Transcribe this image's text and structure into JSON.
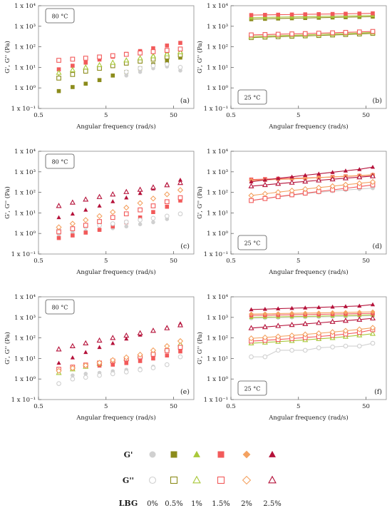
{
  "colors": {
    "lbg_0": "#d0d0d0",
    "lbg_0_5": "#8c8c1c",
    "lbg_1": "#a9c83a",
    "lbg_1_5": "#f25a5a",
    "lbg_2": "#f4a261",
    "lbg_2_5": "#b5123a"
  },
  "axes": {
    "xlabel": "Angular frequency (rad/s)",
    "ylabel": "G', G'' (Pa)",
    "xticks": [
      "0.5",
      "5",
      "50"
    ],
    "yticks": [
      "1 x 10⁻¹",
      "1 x 10⁰",
      "1 x 10¹",
      "1 x 10²",
      "1 x 10³",
      "1 x 10⁴"
    ]
  },
  "legend": {
    "g_prime_label": "G'",
    "g_double_prime_label": "G''",
    "lbg_label": "LBG",
    "concentrations": [
      "0%",
      "0.5%",
      "1%",
      "1.5%",
      "2%",
      "2.5%"
    ]
  },
  "chart_data": [
    {
      "type": "scatter",
      "panel": "(a)",
      "temperature": "80 °C",
      "xlabel": "Angular frequency (rad/s)",
      "ylabel": "G', G'' (Pa)",
      "xscale": "log",
      "yscale": "log",
      "xlim": [
        0.5,
        100
      ],
      "ylim": [
        0.1,
        10000
      ],
      "connected": false,
      "x": [
        1,
        1.6,
        2.5,
        4,
        6.3,
        10,
        16,
        25,
        40,
        63
      ],
      "series": [
        {
          "modulus": "G'",
          "lbg": "0%",
          "values": [
            null,
            null,
            null,
            null,
            null,
            4,
            6,
            9,
            11,
            7
          ]
        },
        {
          "modulus": "G'",
          "lbg": "0.5%",
          "values": [
            0.7,
            1.1,
            1.6,
            2.4,
            4,
            6,
            9,
            14,
            20,
            30
          ]
        },
        {
          "modulus": "G'",
          "lbg": "1%",
          "values": [
            3.5,
            5,
            7,
            10,
            14,
            20,
            28,
            40,
            55,
            70
          ]
        },
        {
          "modulus": "G'",
          "lbg": "1.5%",
          "values": [
            8,
            12,
            17,
            24,
            33,
            45,
            62,
            85,
            115,
            155
          ]
        },
        {
          "modulus": "G''",
          "lbg": "0%",
          "values": [
            null,
            null,
            null,
            null,
            null,
            6,
            9,
            12,
            14,
            10
          ]
        },
        {
          "modulus": "G''",
          "lbg": "0.5%",
          "values": [
            3,
            4.5,
            6.5,
            9,
            12,
            16,
            20,
            25,
            32,
            40
          ]
        },
        {
          "modulus": "G''",
          "lbg": "1%",
          "values": [
            5.5,
            7.5,
            10,
            13,
            17,
            22,
            28,
            35,
            44,
            55
          ]
        },
        {
          "modulus": "G''",
          "lbg": "1.5%",
          "values": [
            22,
            25,
            28,
            32,
            37,
            43,
            50,
            58,
            67,
            78
          ]
        }
      ]
    },
    {
      "type": "line",
      "panel": "(b)",
      "temperature": "25 °C",
      "xlabel": "Angular frequency (rad/s)",
      "ylabel": "G', G'' (Pa)",
      "xscale": "log",
      "yscale": "log",
      "xlim": [
        0.5,
        100
      ],
      "ylim": [
        0.1,
        10000
      ],
      "connected": true,
      "x": [
        1,
        1.6,
        2.5,
        4,
        6.3,
        10,
        16,
        25,
        40,
        63
      ],
      "series": [
        {
          "modulus": "G'",
          "lbg": "0.5%",
          "values": [
            2200,
            2300,
            2380,
            2450,
            2520,
            2600,
            2680,
            2760,
            2850,
            2950
          ]
        },
        {
          "modulus": "G'",
          "lbg": "1%",
          "values": [
            2600,
            2700,
            2780,
            2850,
            2920,
            3000,
            3080,
            3170,
            3260,
            3350
          ]
        },
        {
          "modulus": "G'",
          "lbg": "1.5%",
          "values": [
            3500,
            3580,
            3650,
            3720,
            3800,
            3880,
            3960,
            4050,
            4150,
            4250
          ]
        },
        {
          "modulus": "G''",
          "lbg": "0.5%",
          "values": [
            280,
            295,
            310,
            325,
            340,
            355,
            375,
            395,
            420,
            450
          ]
        },
        {
          "modulus": "G''",
          "lbg": "1%",
          "values": [
            320,
            335,
            350,
            365,
            380,
            400,
            420,
            445,
            470,
            500
          ]
        },
        {
          "modulus": "G''",
          "lbg": "1.5%",
          "values": [
            380,
            395,
            410,
            425,
            440,
            460,
            480,
            505,
            530,
            560
          ]
        }
      ]
    },
    {
      "type": "scatter",
      "panel": "(c)",
      "temperature": "80 °C",
      "xlabel": "Angular frequency (rad/s)",
      "ylabel": "G', G'' (Pa)",
      "xscale": "log",
      "yscale": "log",
      "xlim": [
        0.5,
        100
      ],
      "ylim": [
        0.1,
        10000
      ],
      "connected": false,
      "x": [
        1,
        1.6,
        2.5,
        4,
        6.3,
        10,
        16,
        25,
        40,
        63
      ],
      "series": [
        {
          "modulus": "G'",
          "lbg": "0%",
          "values": [
            0.9,
            1.1,
            1.3,
            1.5,
            1.8,
            2.2,
            2.8,
            3.5,
            5,
            9
          ]
        },
        {
          "modulus": "G'",
          "lbg": "1.5%",
          "values": [
            0.6,
            0.8,
            1.1,
            1.5,
            2.2,
            3.5,
            6,
            11,
            20,
            40
          ]
        },
        {
          "modulus": "G'",
          "lbg": "2.5%",
          "values": [
            6,
            9,
            14,
            22,
            36,
            55,
            90,
            150,
            250,
            400
          ]
        },
        {
          "modulus": "G''",
          "lbg": "0%",
          "values": [
            1.5,
            1.8,
            2.1,
            2.5,
            3,
            3.6,
            4.5,
            5.5,
            7,
            9
          ]
        },
        {
          "modulus": "G''",
          "lbg": "1.5%",
          "values": [
            1.2,
            1.7,
            2.5,
            3.8,
            6,
            9,
            14,
            22,
            35,
            55
          ]
        },
        {
          "modulus": "G''",
          "lbg": "2%",
          "values": [
            2,
            3,
            4.5,
            7,
            11,
            18,
            30,
            50,
            80,
            130
          ]
        },
        {
          "modulus": "G''",
          "lbg": "2.5%",
          "values": [
            22,
            32,
            45,
            60,
            80,
            105,
            135,
            175,
            225,
            290
          ]
        }
      ]
    },
    {
      "type": "line",
      "panel": "(d)",
      "temperature": "25 °C",
      "xlabel": "Angular frequency (rad/s)",
      "ylabel": "G', G'' (Pa)",
      "xscale": "log",
      "yscale": "log",
      "xlim": [
        0.5,
        100
      ],
      "ylim": [
        0.1,
        10000
      ],
      "connected": true,
      "x": [
        1,
        1.6,
        2.5,
        4,
        6.3,
        10,
        16,
        25,
        40,
        63
      ],
      "series": [
        {
          "modulus": "G'",
          "lbg": "0%",
          "values": [
            40,
            50,
            60,
            72,
            85,
            100,
            115,
            130,
            145,
            160
          ]
        },
        {
          "modulus": "G'",
          "lbg": "1.5%",
          "values": [
            420,
            440,
            460,
            480,
            500,
            530,
            560,
            600,
            640,
            690
          ]
        },
        {
          "modulus": "G'",
          "lbg": "2%",
          "values": [
            380,
            400,
            425,
            450,
            480,
            520,
            560,
            610,
            660,
            720
          ]
        },
        {
          "modulus": "G'",
          "lbg": "2.5%",
          "values": [
            330,
            400,
            480,
            570,
            680,
            800,
            950,
            1120,
            1320,
            1700
          ]
        },
        {
          "modulus": "G''",
          "lbg": "1.5%",
          "values": [
            40,
            50,
            62,
            76,
            92,
            110,
            132,
            158,
            190,
            230
          ]
        },
        {
          "modulus": "G''",
          "lbg": "2%",
          "values": [
            70,
            85,
            102,
            122,
            145,
            170,
            200,
            235,
            275,
            320
          ]
        },
        {
          "modulus": "G''",
          "lbg": "2.5%",
          "values": [
            200,
            230,
            265,
            300,
            340,
            385,
            435,
            490,
            550,
            620
          ]
        }
      ]
    },
    {
      "type": "scatter",
      "panel": "(e)",
      "temperature": "80 °C",
      "xlabel": "Angular frequency (rad/s)",
      "ylabel": "G', G'' (Pa)",
      "xscale": "log",
      "yscale": "log",
      "xlim": [
        0.5,
        100
      ],
      "ylim": [
        0.1,
        10000
      ],
      "connected": false,
      "x": [
        1,
        1.6,
        2.5,
        4,
        6.3,
        10,
        16,
        25,
        40,
        63
      ],
      "series": [
        {
          "modulus": "G'",
          "lbg": "0%",
          "values": [
            2,
            1.5,
            1.8,
            2,
            2.4,
            2.8,
            3.2,
            4,
            null,
            null
          ]
        },
        {
          "modulus": "G'",
          "lbg": "1.5%",
          "values": [
            3,
            3.5,
            4,
            4.5,
            5,
            6,
            7.5,
            10,
            14,
            22
          ]
        },
        {
          "modulus": "G'",
          "lbg": "2.5%",
          "values": [
            6,
            11,
            20,
            35,
            55,
            90,
            140,
            220,
            330,
            500
          ]
        },
        {
          "modulus": "G''",
          "lbg": "0%",
          "values": [
            0.6,
            1,
            1.2,
            1.5,
            1.8,
            2.2,
            2.8,
            3.5,
            5,
            12
          ]
        },
        {
          "modulus": "G''",
          "lbg": "1%",
          "values": [
            2,
            3,
            4,
            5.5,
            7.5,
            10,
            14,
            20,
            30,
            50
          ]
        },
        {
          "modulus": "G''",
          "lbg": "1.5%",
          "values": [
            3,
            3.8,
            4.8,
            6,
            7.5,
            9.5,
            12,
            16,
            24,
            35
          ]
        },
        {
          "modulus": "G''",
          "lbg": "2%",
          "values": [
            2.5,
            3.4,
            4.6,
            6.2,
            8.4,
            11.3,
            15.3,
            25,
            40,
            70
          ]
        },
        {
          "modulus": "G''",
          "lbg": "2.5%",
          "values": [
            28,
            40,
            55,
            75,
            100,
            130,
            170,
            225,
            300,
            420
          ]
        }
      ]
    },
    {
      "type": "line",
      "panel": "(f)",
      "temperature": "25 °C",
      "xlabel": "Angular frequency (rad/s)",
      "ylabel": "G', G'' (Pa)",
      "xscale": "log",
      "yscale": "log",
      "xlim": [
        0.5,
        100
      ],
      "ylim": [
        0.1,
        10000
      ],
      "connected": true,
      "x": [
        1,
        1.6,
        2.5,
        4,
        6.3,
        10,
        16,
        25,
        40,
        63
      ],
      "series": [
        {
          "modulus": "G'",
          "lbg": "0%",
          "values": [
            900,
            930,
            960,
            990,
            1020,
            1050,
            1080,
            1120,
            1160,
            1200
          ]
        },
        {
          "modulus": "G'",
          "lbg": "1%",
          "values": [
            1000,
            1030,
            1060,
            1090,
            1120,
            1150,
            1190,
            1230,
            1270,
            1320
          ]
        },
        {
          "modulus": "G'",
          "lbg": "1.5%",
          "values": [
            1250,
            1280,
            1310,
            1340,
            1370,
            1400,
            1440,
            1480,
            1520,
            1560
          ]
        },
        {
          "modulus": "G'",
          "lbg": "2%",
          "values": [
            1450,
            1490,
            1530,
            1570,
            1610,
            1650,
            1700,
            1750,
            1800,
            1860
          ]
        },
        {
          "modulus": "G'",
          "lbg": "2.5%",
          "values": [
            2400,
            2520,
            2650,
            2780,
            2920,
            3070,
            3230,
            3400,
            3600,
            4200
          ]
        },
        {
          "modulus": "G''",
          "lbg": "0%",
          "values": [
            12,
            12,
            25,
            25,
            25,
            33,
            36,
            40,
            40,
            55
          ]
        },
        {
          "modulus": "G''",
          "lbg": "1%",
          "values": [
            55,
            60,
            66,
            72,
            80,
            90,
            100,
            115,
            135,
            160
          ]
        },
        {
          "modulus": "G''",
          "lbg": "1.5%",
          "values": [
            70,
            76,
            84,
            93,
            104,
            117,
            133,
            155,
            185,
            250
          ]
        },
        {
          "modulus": "G''",
          "lbg": "2%",
          "values": [
            95,
            105,
            117,
            131,
            148,
            168,
            192,
            222,
            260,
            310
          ]
        },
        {
          "modulus": "G''",
          "lbg": "2.5%",
          "values": [
            300,
            340,
            385,
            430,
            480,
            540,
            610,
            690,
            780,
            900
          ]
        }
      ]
    }
  ]
}
